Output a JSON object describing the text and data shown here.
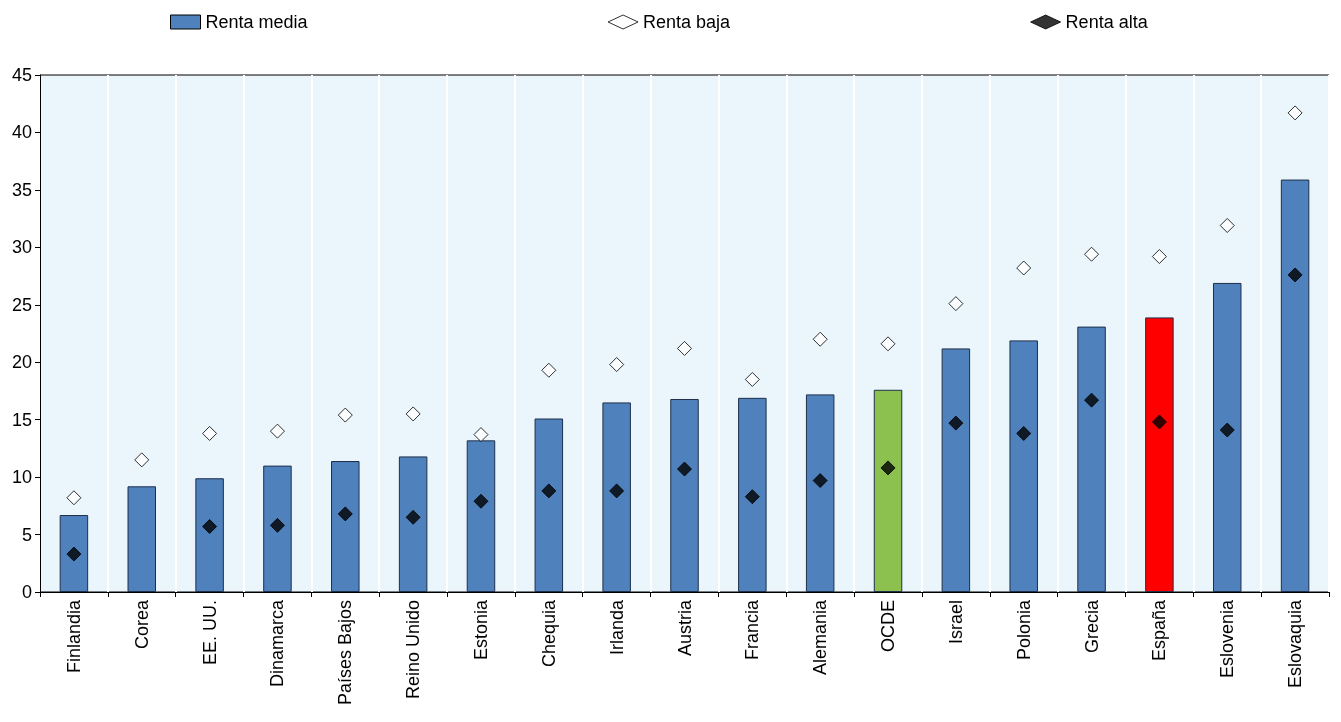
{
  "chart_data": {
    "type": "bar",
    "categories": [
      "Finlandia",
      "Corea",
      "EE. UU.",
      "Dinamarca",
      "Países Bajos",
      "Reino Unido",
      "Estonia",
      "Chequia",
      "Irlanda",
      "Austria",
      "Francia",
      "Alemania",
      "OCDE",
      "Israel",
      "Polonia",
      "Grecia",
      "España",
      "Eslovenia",
      "Eslovaquia"
    ],
    "series": [
      {
        "name": "Renta media",
        "color": "#4f81bd",
        "colors": [
          "#4f81bd",
          "#4f81bd",
          "#4f81bd",
          "#4f81bd",
          "#4f81bd",
          "#4f81bd",
          "#4f81bd",
          "#4f81bd",
          "#4f81bd",
          "#4f81bd",
          "#4f81bd",
          "#4f81bd",
          "#8cc04f",
          "#4f81bd",
          "#4f81bd",
          "#4f81bd",
          "#ff0000",
          "#4f81bd",
          "#4f81bd"
        ],
        "values": [
          6.7,
          9.2,
          9.9,
          11.0,
          11.4,
          11.8,
          13.2,
          15.1,
          16.5,
          16.8,
          16.9,
          17.2,
          17.6,
          21.2,
          21.9,
          23.1,
          23.9,
          26.9,
          35.9
        ]
      },
      {
        "name": "Renta baja",
        "type": "scatter",
        "color": "#ffffff",
        "marker": "diamond",
        "values": [
          8.2,
          11.5,
          13.8,
          14.0,
          15.4,
          15.5,
          13.7,
          19.3,
          19.8,
          21.2,
          18.5,
          22.0,
          21.6,
          25.1,
          28.2,
          29.4,
          29.2,
          31.9,
          41.7
        ]
      },
      {
        "name": "Renta alta",
        "type": "scatter",
        "color": "#000000",
        "marker": "diamond",
        "values": [
          3.3,
          null,
          5.7,
          5.8,
          6.8,
          6.5,
          7.9,
          8.8,
          8.8,
          10.7,
          8.3,
          9.7,
          10.8,
          14.7,
          13.8,
          16.7,
          14.8,
          14.1,
          27.6
        ]
      }
    ],
    "ylim": [
      0,
      45
    ],
    "yticks": [
      0,
      5,
      10,
      15,
      20,
      25,
      30,
      35,
      40,
      45
    ],
    "grid": "x",
    "legend": "top"
  }
}
